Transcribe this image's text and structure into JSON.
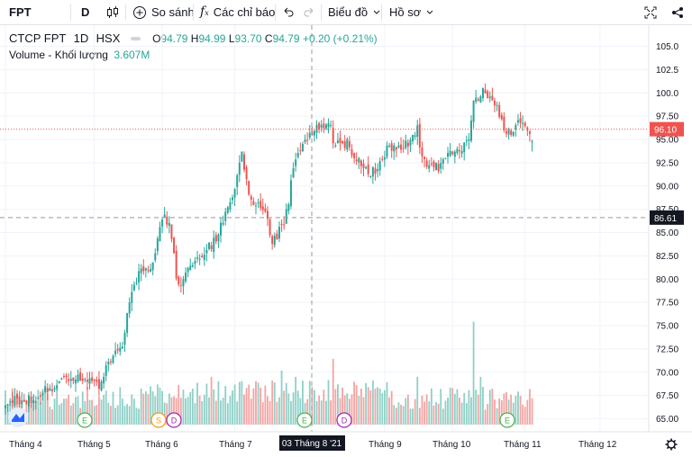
{
  "toolbar": {
    "symbol": "FPT",
    "interval": "D",
    "compare_label": "So sánh",
    "indicators_label": "Các chỉ báo",
    "chart_type_label": "Biểu đồ",
    "profile_label": "Hồ sơ"
  },
  "legend": {
    "title": "CTCP FPT",
    "interval": "1D",
    "exchange": "HSX",
    "o_label": "O",
    "o_value": "94.79",
    "h_label": "H",
    "h_value": "94.99",
    "l_label": "L",
    "l_value": "93.70",
    "c_label": "C",
    "c_value": "94.79",
    "change": "+0.20 (+0.21%)",
    "volume_label": "Volume - Khối lượng",
    "volume_value": "3.607M"
  },
  "colors": {
    "up": "#26a69a",
    "down": "#ef5350",
    "vol_up": "#8fd0c7",
    "vol_down": "#f5a3a2",
    "last_price": "#ef5350",
    "crosshair_label": "#131722",
    "dividend": "#9c27b0",
    "earnings": "#4caf50",
    "split": "#ff9800"
  },
  "chart_data": {
    "type": "candlestick",
    "title": "CTCP FPT · 1D · HSX",
    "y_ticks": [
      "65.00",
      "67.50",
      "70.00",
      "72.50",
      "75.00",
      "77.50",
      "80.00",
      "82.50",
      "85.00",
      "87.50",
      "90.00",
      "92.50",
      "95.00",
      "97.50",
      "100.0",
      "102.5",
      "105.0"
    ],
    "ylim": [
      63.6,
      106.5
    ],
    "x_ticks": [
      "Tháng 4",
      "Tháng 5",
      "Tháng 6",
      "Tháng 7",
      "Tháng 9",
      "Tháng 10",
      "Tháng 11",
      "Tháng 12"
    ],
    "crosshair_date": "03 Tháng 8 '21",
    "crosshair_price": "86.61",
    "last_price": "96.10",
    "events": [
      {
        "type": "E",
        "label": "E",
        "month": "Tháng 5"
      },
      {
        "type": "S",
        "label": "S",
        "month": "Tháng 6"
      },
      {
        "type": "D",
        "label": "D",
        "month": "Tháng 6"
      },
      {
        "type": "E",
        "label": "E",
        "month": "Tháng 8"
      },
      {
        "type": "D",
        "label": "D",
        "month": "Tháng 8"
      },
      {
        "type": "E",
        "label": "E",
        "month": "Tháng 11"
      }
    ],
    "anchors": [
      [
        0,
        66.8
      ],
      [
        10,
        67.0
      ],
      [
        20,
        68.4
      ],
      [
        30,
        69.6
      ],
      [
        35,
        69.0
      ],
      [
        40,
        68.3
      ],
      [
        44,
        71.2
      ],
      [
        50,
        72.8
      ],
      [
        53,
        78.0
      ],
      [
        57,
        80.8
      ],
      [
        60,
        81.0
      ],
      [
        63,
        81.6
      ],
      [
        67,
        86.7
      ],
      [
        70,
        85.8
      ],
      [
        73,
        80.5
      ],
      [
        75,
        79.5
      ],
      [
        78,
        80.8
      ],
      [
        82,
        82.2
      ],
      [
        86,
        83.2
      ],
      [
        90,
        84.2
      ],
      [
        94,
        87.0
      ],
      [
        98,
        89.5
      ],
      [
        101,
        93.5
      ],
      [
        104,
        89.0
      ],
      [
        107,
        88.0
      ],
      [
        111,
        87.0
      ],
      [
        114,
        84.0
      ],
      [
        118,
        85.5
      ],
      [
        121,
        88.0
      ],
      [
        123,
        92.3
      ],
      [
        126,
        93.8
      ],
      [
        130,
        95.5
      ],
      [
        134,
        96.2
      ],
      [
        138,
        97.1
      ],
      [
        140,
        95.0
      ],
      [
        143,
        94.3
      ],
      [
        146,
        94.6
      ],
      [
        150,
        93.0
      ],
      [
        154,
        91.5
      ],
      [
        157,
        91.6
      ],
      [
        160,
        92.3
      ],
      [
        163,
        94.0
      ],
      [
        167,
        94.2
      ],
      [
        172,
        94.6
      ],
      [
        176,
        96.3
      ],
      [
        178,
        92.8
      ],
      [
        182,
        92.3
      ],
      [
        186,
        92.0
      ],
      [
        189,
        93.2
      ],
      [
        192,
        94.2
      ],
      [
        195,
        94.2
      ],
      [
        198,
        94.8
      ],
      [
        200,
        99.3
      ],
      [
        204,
        100.0
      ],
      [
        207,
        99.8
      ],
      [
        210,
        98.2
      ],
      [
        213,
        96.4
      ],
      [
        216,
        95.6
      ],
      [
        219,
        97.4
      ],
      [
        222,
        96.6
      ],
      [
        224,
        96.1
      ],
      [
        225,
        96.1
      ]
    ],
    "volume_events": [
      [
        140,
        6.2
      ],
      [
        118,
        5.1
      ],
      [
        142,
        3.8
      ],
      [
        200,
        9.7
      ],
      [
        203,
        4.5
      ],
      [
        163,
        4.0
      ],
      [
        176,
        4.5
      ],
      [
        124,
        4.5
      ],
      [
        88,
        4.5
      ],
      [
        107,
        4.1
      ]
    ]
  }
}
